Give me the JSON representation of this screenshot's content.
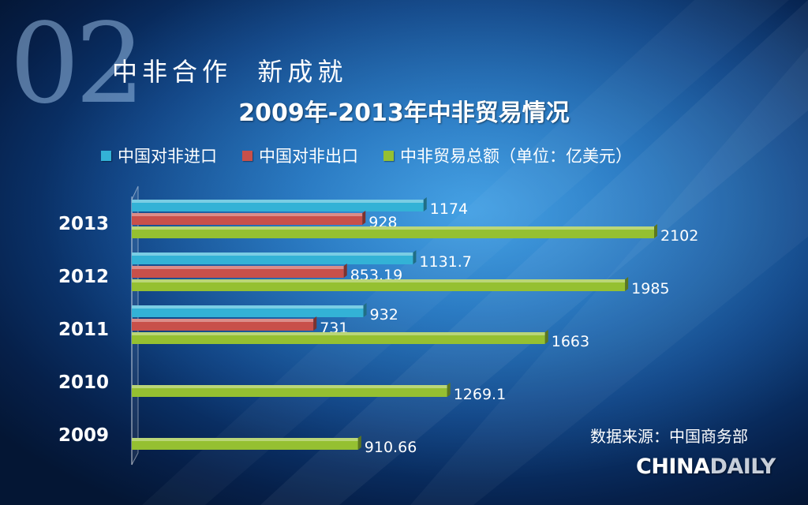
{
  "slide": {
    "section_number": "02",
    "section_title": "中非合作  新成就",
    "source_note": "数据来源：中国商务部",
    "brand": {
      "part1": "CHINA",
      "part2": "DAILY"
    }
  },
  "chart_data": {
    "type": "bar",
    "orientation": "horizontal",
    "title": "2009年-2013年中非贸易情况",
    "categories": [
      "2013",
      "2012",
      "2011",
      "2010",
      "2009"
    ],
    "series": [
      {
        "name": "中国对非进口",
        "color": "#33b2d6",
        "values": [
          1174,
          1131.7,
          932,
          null,
          null
        ],
        "labels": [
          "1174",
          "1131.7",
          "932",
          "",
          ""
        ]
      },
      {
        "name": "中国对非出口",
        "color": "#c8504a",
        "values": [
          928,
          853.19,
          731,
          null,
          null
        ],
        "labels": [
          "928",
          "853.19",
          "731",
          "",
          ""
        ]
      },
      {
        "name": "中非贸易总额（单位：亿美元）",
        "color": "#95c031",
        "values": [
          2102,
          1985,
          1663,
          1269.1,
          910.66
        ],
        "labels": [
          "2102",
          "1985",
          "1663",
          "1269.1",
          "910.66"
        ]
      }
    ],
    "xlim": [
      0,
      2102
    ],
    "grid": false,
    "legend_position": "top"
  }
}
